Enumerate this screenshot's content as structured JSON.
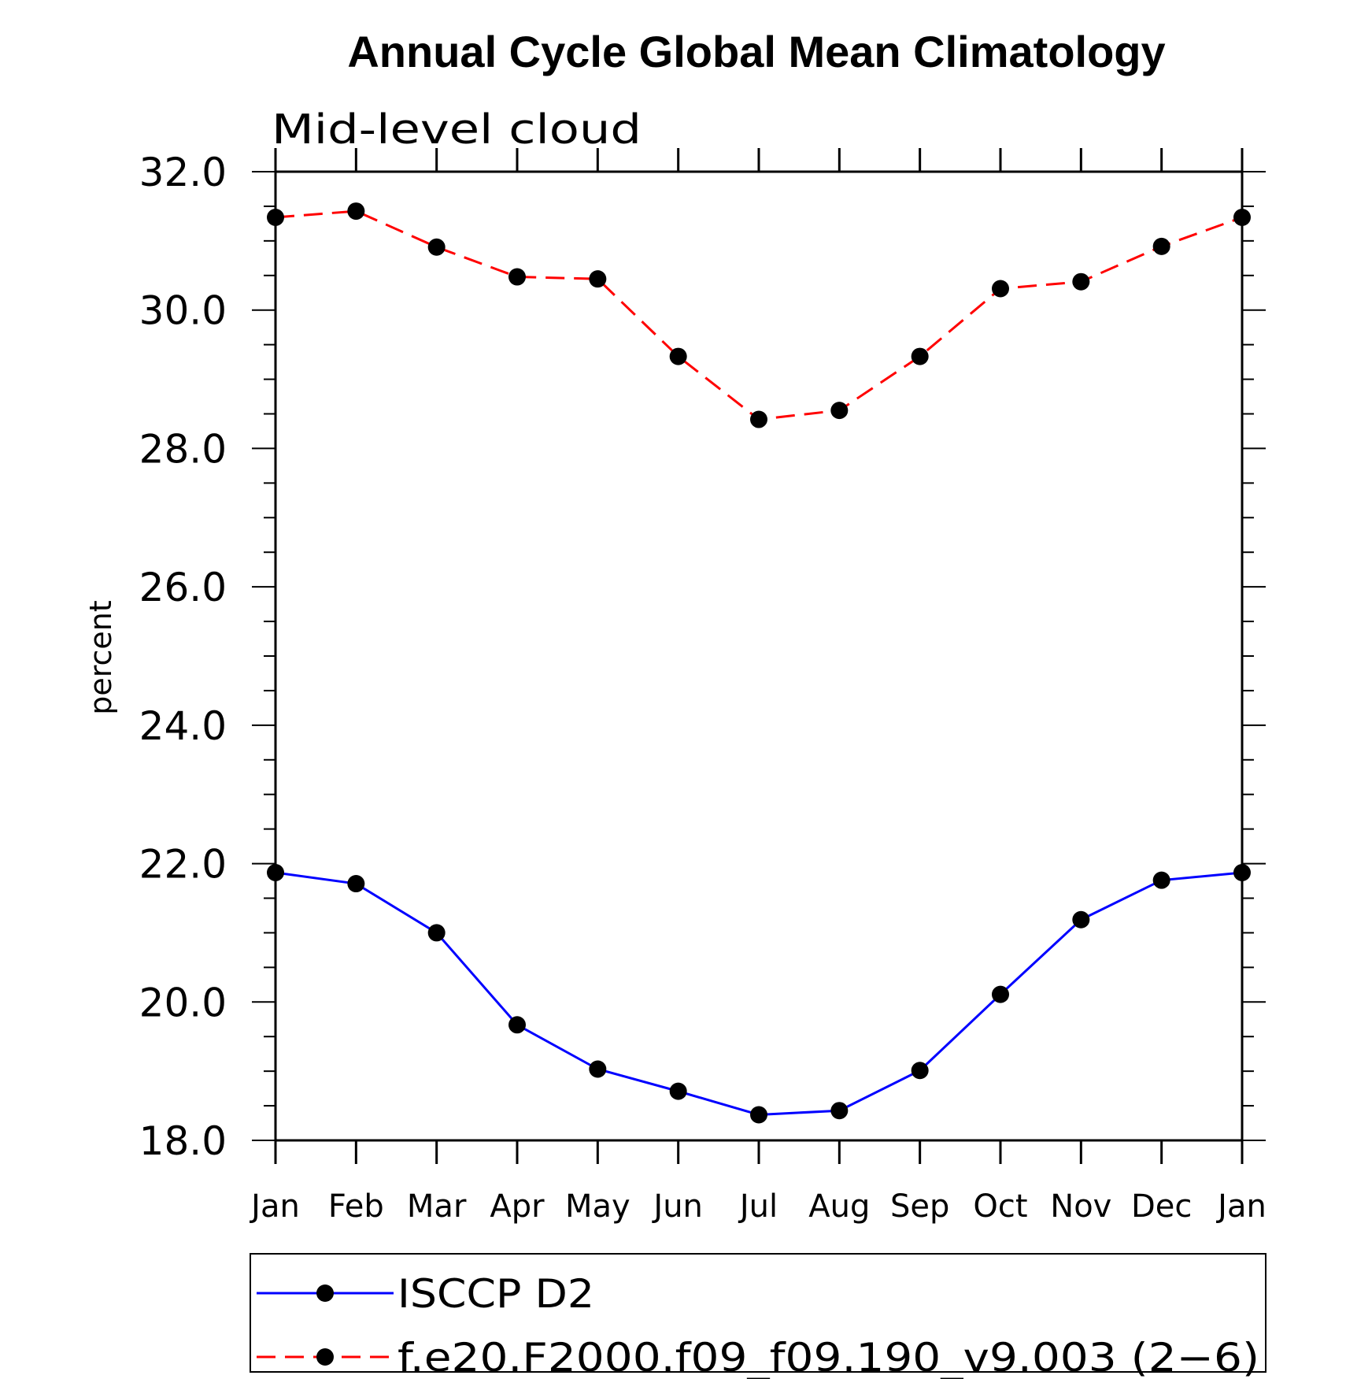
{
  "chart_data": {
    "type": "line",
    "title": "Annual Cycle Global Mean Climatology",
    "subtitle": "Mid-level cloud",
    "xlabel": "",
    "ylabel": "percent",
    "categories": [
      "Jan",
      "Feb",
      "Mar",
      "Apr",
      "May",
      "Jun",
      "Jul",
      "Aug",
      "Sep",
      "Oct",
      "Nov",
      "Dec",
      "Jan"
    ],
    "ylim": [
      18.0,
      32.0
    ],
    "yticks": [
      "18.0",
      "20.0",
      "22.0",
      "24.0",
      "26.0",
      "28.0",
      "30.0",
      "32.0"
    ],
    "grid": false,
    "legend_position": "bottom",
    "series": [
      {
        "name": "ISCCP D2",
        "color": "#0000ff",
        "dash": "solid",
        "marker": "filled-circle",
        "values": [
          21.87,
          21.71,
          21.0,
          19.67,
          19.03,
          18.71,
          18.37,
          18.43,
          19.01,
          20.11,
          21.19,
          21.76,
          21.87
        ]
      },
      {
        "name": "f.e20.F2000.f09_f09.190_v9.003 (2−6)",
        "color": "#ff0000",
        "dash": "dashed",
        "marker": "filled-circle",
        "values": [
          31.34,
          31.43,
          30.91,
          30.48,
          30.45,
          29.33,
          28.42,
          28.55,
          29.33,
          30.31,
          30.41,
          30.92,
          31.34
        ]
      }
    ]
  }
}
